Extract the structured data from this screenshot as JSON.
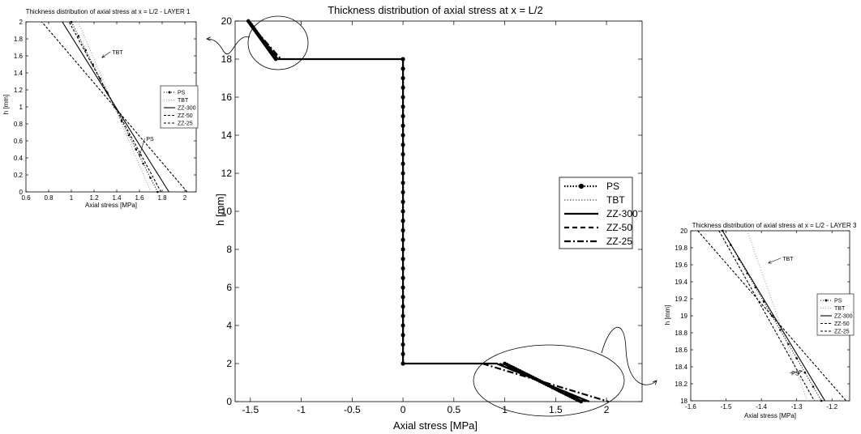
{
  "figure": {
    "charts": [
      {
        "id": "main",
        "type": "line",
        "title": "Thickness distribution of axial stress at x = L/2",
        "xlabel": "Axial stress [MPa]",
        "ylabel": "h [mm]",
        "xlim": [
          -1.65,
          2.35
        ],
        "ylim": [
          0,
          20
        ],
        "xticks": [
          -1.5,
          -1,
          -0.5,
          0,
          0.5,
          1,
          1.5,
          2
        ],
        "yticks": [
          0,
          2,
          4,
          6,
          8,
          10,
          12,
          14,
          16,
          18,
          20
        ],
        "legend": {
          "position": "center-right",
          "entries": [
            "PS",
            "TBT",
            "ZZ-300",
            "ZZ-50",
            "ZZ-25"
          ]
        },
        "series": [
          {
            "name": "PS",
            "style": "dotted-marker",
            "segments": [
              [
                [
                  -1.52,
                  20
                ],
                [
                  -1.25,
                  18
                ]
              ],
              [
                [
                  0,
                  18
                ],
                [
                  0,
                  2
                ]
              ],
              [
                [
                  1.0,
                  2
                ],
                [
                  1.75,
                  0
                ]
              ]
            ]
          },
          {
            "name": "TBT",
            "style": "dotted",
            "segments": [
              [
                [
                  -1.5,
                  20
                ],
                [
                  -1.24,
                  18
                ]
              ],
              [
                [
                  1.0,
                  2
                ],
                [
                  1.73,
                  0
                ]
              ]
            ]
          },
          {
            "name": "ZZ-300",
            "style": "solid",
            "segments": [
              [
                [
                  -1.52,
                  20
                ],
                [
                  -1.23,
                  18
                ],
                [
                  0,
                  18
                ],
                [
                  0,
                  2
                ],
                [
                  0.92,
                  2
                ],
                [
                  1.83,
                  0
                ]
              ]
            ]
          },
          {
            "name": "ZZ-50",
            "style": "dashed",
            "segments": [
              [
                [
                  -1.52,
                  20
                ],
                [
                  -1.22,
                  18
                ]
              ],
              [
                [
                  0.95,
                  2
                ],
                [
                  1.8,
                  0
                ]
              ]
            ]
          },
          {
            "name": "ZZ-25",
            "style": "dashdot",
            "segments": [
              [
                [
                  -1.53,
                  20
                ],
                [
                  -1.2,
                  18
                ]
              ],
              [
                [
                  0.78,
                  2
                ],
                [
                  2.02,
                  0
                ]
              ]
            ]
          }
        ],
        "ps_markers": {
          "vertical": {
            "x": 0,
            "y": [
              2,
              2.5,
              3,
              3.5,
              4,
              4.5,
              5,
              5.5,
              6,
              6.5,
              7,
              7.5,
              8,
              8.5,
              9,
              9.5,
              10,
              10.5,
              11,
              11.5,
              12,
              12.5,
              13,
              13.5,
              14,
              14.5,
              15,
              15.5,
              16,
              16.5,
              17,
              17.5,
              18
            ]
          },
          "top": {
            "from": [
              -1.52,
              20
            ],
            "to": [
              -1.25,
              18
            ],
            "count": 28
          },
          "bottom": {
            "from": [
              1.0,
              2
            ],
            "to": [
              1.75,
              0
            ],
            "count": 36
          }
        }
      },
      {
        "id": "layer1",
        "type": "line",
        "title": "Thickness distribution of axial stress at x = L/2 - LAYER 1",
        "xlabel": "Axial stress [MPa]",
        "ylabel": "h [mm]",
        "xlim": [
          0.6,
          2.1
        ],
        "ylim": [
          0,
          2
        ],
        "xticks": [
          0.6,
          0.8,
          1,
          1.2,
          1.4,
          1.6,
          1.8,
          2
        ],
        "yticks": [
          0,
          0.2,
          0.4,
          0.6,
          0.8,
          1,
          1.2,
          1.4,
          1.6,
          1.8,
          2
        ],
        "legend": {
          "position": "center-right",
          "entries": [
            "PS",
            "TBT",
            "ZZ-300",
            "ZZ-50",
            "ZZ-25"
          ]
        },
        "annotations": [
          {
            "text": "TBT",
            "x": 1.36,
            "y": 1.62,
            "target": [
              1.27,
              1.58
            ]
          },
          {
            "text": "PS",
            "x": 1.66,
            "y": 0.6,
            "target": [
              1.6,
              0.42
            ]
          }
        ],
        "series": [
          {
            "name": "PS",
            "style": "dotted-marker",
            "points": [
              [
                1.76,
                0
              ],
              [
                1.0,
                2
              ]
            ]
          },
          {
            "name": "TBT",
            "style": "dotted",
            "points": [
              [
                1.7,
                0
              ],
              [
                1.06,
                2
              ]
            ]
          },
          {
            "name": "ZZ-300",
            "style": "solid",
            "points": [
              [
                1.86,
                0
              ],
              [
                0.92,
                2
              ]
            ]
          },
          {
            "name": "ZZ-50",
            "style": "dashed",
            "points": [
              [
                1.79,
                0
              ],
              [
                0.98,
                2
              ]
            ]
          },
          {
            "name": "ZZ-25",
            "style": "dashed",
            "points": [
              [
                2.02,
                0
              ],
              [
                0.74,
                2
              ]
            ]
          }
        ]
      },
      {
        "id": "layer3",
        "type": "line",
        "title": "Thickness distribution of axial stress at x = L/2 - LAYER 3",
        "xlabel": "Axial stress [MPa]",
        "ylabel": "h [mm]",
        "xlim": [
          -1.6,
          -1.15
        ],
        "ylim": [
          18,
          20
        ],
        "xticks": [
          -1.6,
          -1.5,
          -1.4,
          -1.3,
          -1.2
        ],
        "yticks": [
          18,
          18.2,
          18.4,
          18.6,
          18.8,
          19,
          19.2,
          19.4,
          19.6,
          19.8,
          20
        ],
        "legend": {
          "position": "center-right",
          "entries": [
            "PS",
            "TBT",
            "ZZ-300",
            "ZZ-50",
            "ZZ-25"
          ]
        },
        "annotations": [
          {
            "text": "TBT",
            "x": -1.34,
            "y": 19.65,
            "target": [
              -1.38,
              19.62
            ]
          },
          {
            "text": "PS",
            "x": -1.315,
            "y": 18.3,
            "target": [
              -1.285,
              18.35
            ]
          }
        ],
        "series": [
          {
            "name": "PS",
            "style": "dotted-marker",
            "points": [
              [
                -1.51,
                20
              ],
              [
                -1.23,
                18
              ]
            ]
          },
          {
            "name": "TBT",
            "style": "dotted",
            "points": [
              [
                -1.44,
                20
              ],
              [
                -1.27,
                18
              ]
            ]
          },
          {
            "name": "ZZ-300",
            "style": "solid",
            "points": [
              [
                -1.51,
                20
              ],
              [
                -1.22,
                18
              ]
            ]
          },
          {
            "name": "ZZ-50",
            "style": "dashed",
            "points": [
              [
                -1.52,
                20
              ],
              [
                -1.25,
                18
              ]
            ]
          },
          {
            "name": "ZZ-25",
            "style": "dashed",
            "points": [
              [
                -1.58,
                20
              ],
              [
                -1.16,
                18
              ]
            ]
          }
        ]
      }
    ]
  }
}
